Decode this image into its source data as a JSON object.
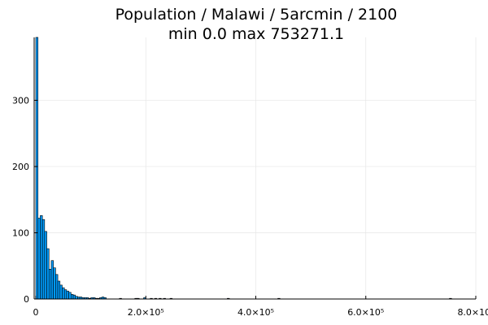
{
  "chart_data": {
    "type": "bar",
    "title": "Population / Malawi / 5arcmin / 2100",
    "subtitle": "min 0.0  max 753271.1",
    "xlabel": "",
    "ylabel": "",
    "xlim": [
      -3000,
      800000
    ],
    "ylim": [
      0,
      395
    ],
    "bin_width": 4000,
    "x_ticks": [
      {
        "value": 0,
        "label": "0"
      },
      {
        "value": 200000,
        "label": "2.0×10⁵"
      },
      {
        "value": 400000,
        "label": "4.0×10⁵"
      },
      {
        "value": 600000,
        "label": "6.0×10⁵"
      },
      {
        "value": 800000,
        "label": "8.0×10⁵"
      }
    ],
    "y_ticks": [
      {
        "value": 0,
        "label": "0"
      },
      {
        "value": 100,
        "label": "100"
      },
      {
        "value": 200,
        "label": "200"
      },
      {
        "value": 300,
        "label": "300"
      }
    ],
    "grid": true,
    "bar_color": "#009af9",
    "bins_start": [
      0,
      4000,
      8000,
      12000,
      16000,
      20000,
      24000,
      28000,
      32000,
      36000,
      40000,
      44000,
      48000,
      52000,
      56000,
      60000,
      64000,
      68000,
      72000,
      76000,
      80000,
      84000,
      88000,
      92000,
      96000,
      100000,
      104000,
      108000,
      112000,
      116000,
      120000,
      124000,
      152000,
      180000,
      184000,
      196000,
      208000,
      216000,
      224000,
      232000,
      244000,
      348000,
      440000,
      752000
    ],
    "values": [
      395,
      122,
      126,
      120,
      102,
      76,
      45,
      58,
      47,
      37,
      27,
      21,
      17,
      14,
      12,
      10,
      7,
      6,
      4,
      3,
      3,
      2,
      2,
      2,
      1,
      2,
      2,
      1,
      1,
      2,
      3,
      2,
      1,
      1,
      1,
      2,
      1,
      1,
      1,
      1,
      1,
      1,
      1,
      1
    ]
  }
}
